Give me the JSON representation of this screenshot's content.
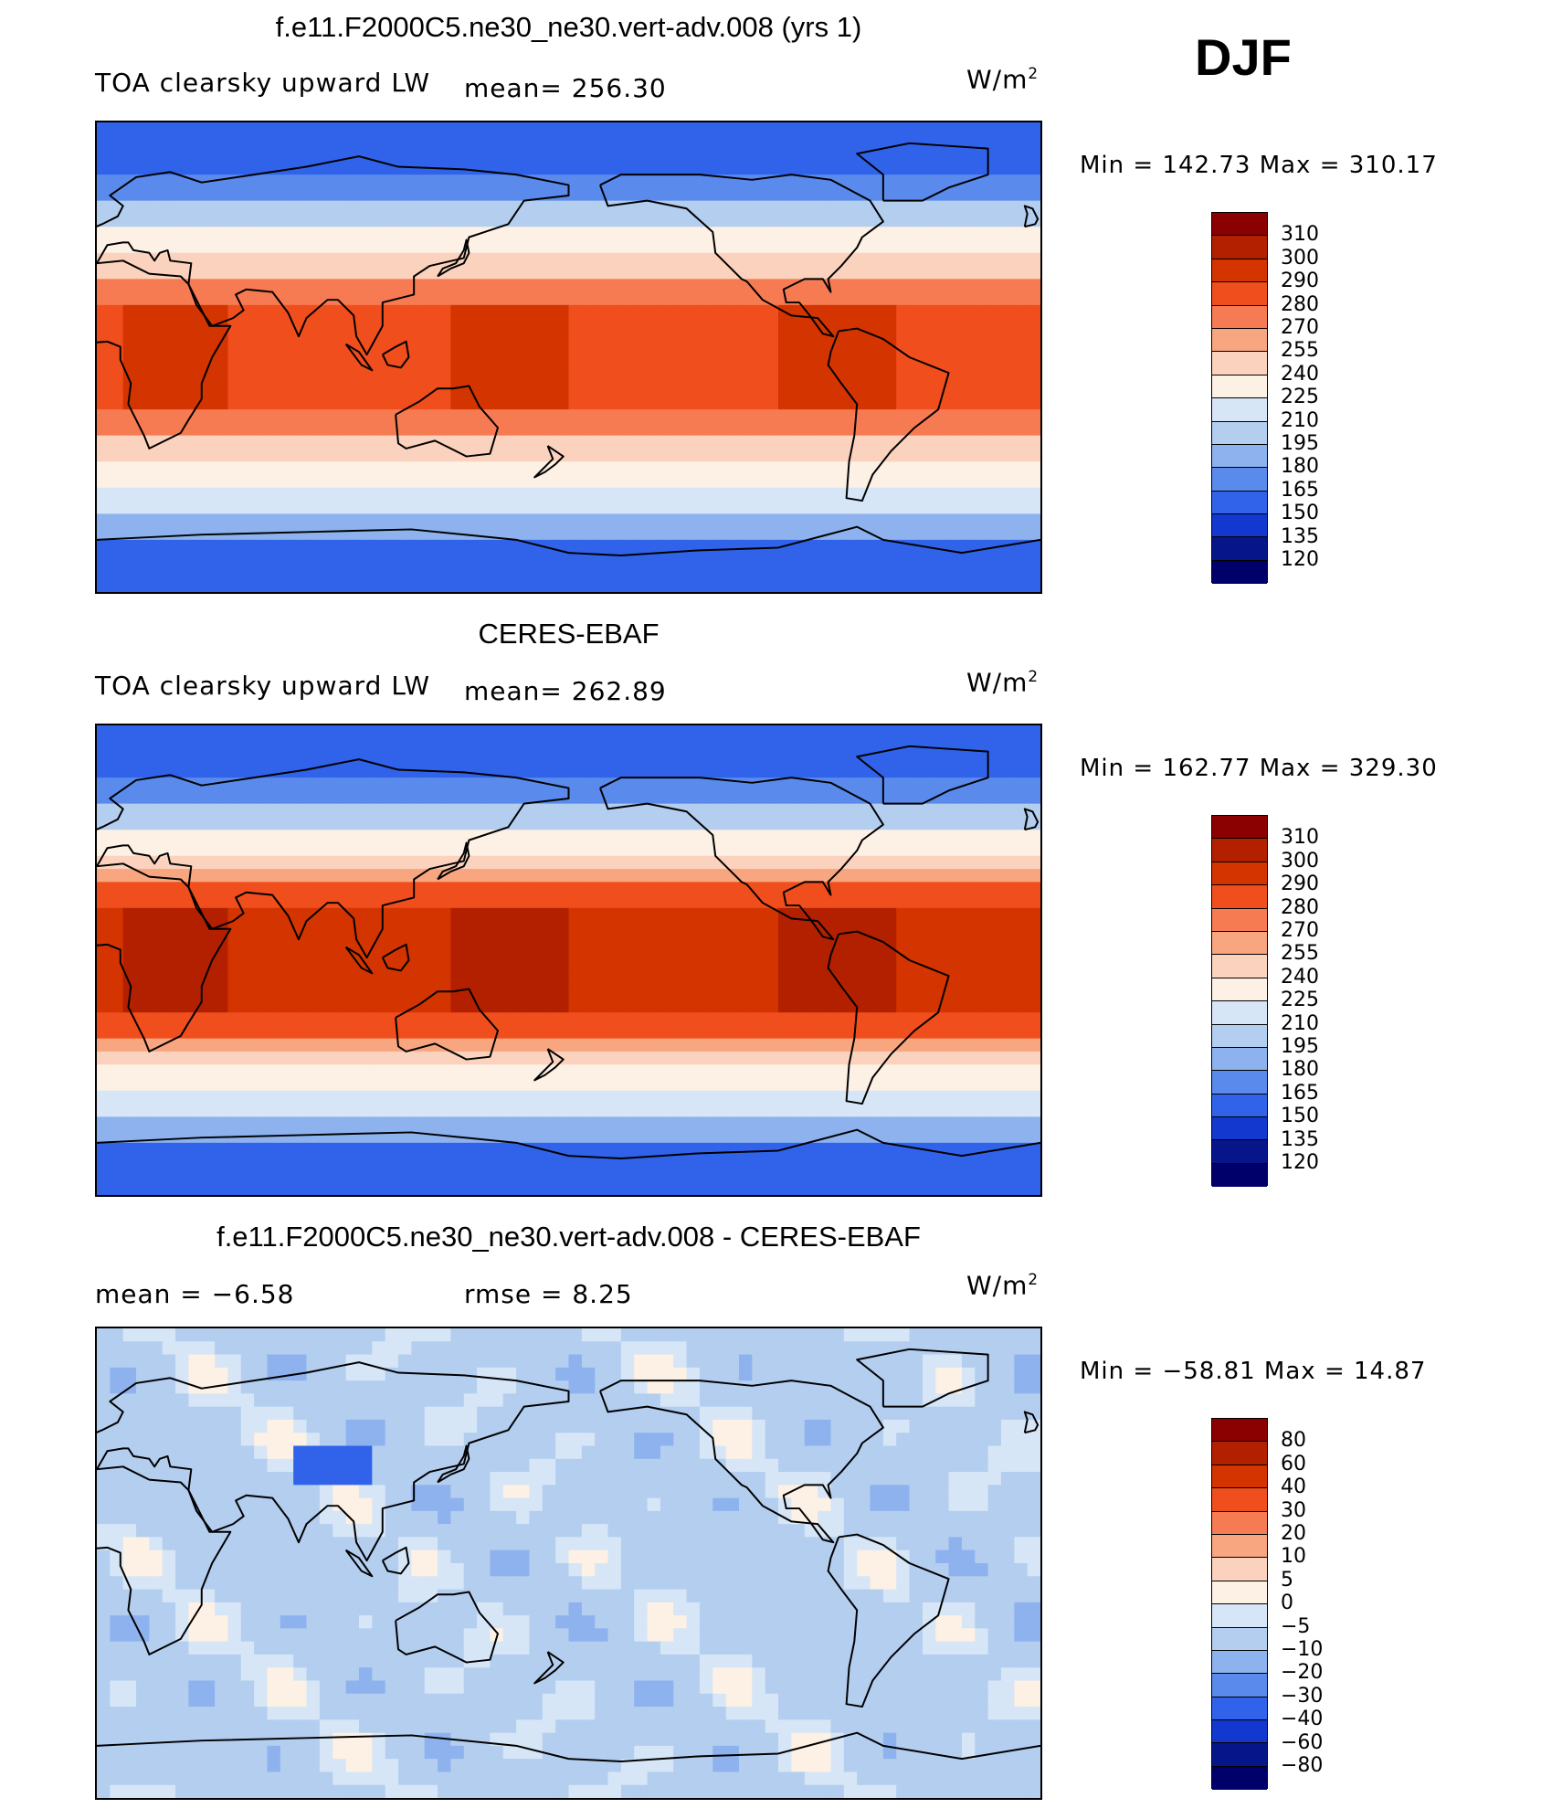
{
  "season": "DJF",
  "panels": [
    {
      "title": "f.e11.F2000C5.ne30_ne30.vert-adv.008 (yrs 1)",
      "left_label": "TOA clearsky upward LW",
      "center_label": "mean=  256.30",
      "units_base": "W/m",
      "units_exp": "2",
      "minmax": "Min  =  142.73  Max  =  310.17",
      "colorbar_labels": [
        "310",
        "300",
        "290",
        "280",
        "270",
        "255",
        "240",
        "225",
        "210",
        "195",
        "180",
        "165",
        "150",
        "135",
        "120"
      ],
      "colorbar_colors": [
        "#8b0000",
        "#b22000",
        "#d33400",
        "#f04e1c",
        "#f67b52",
        "#f8a67f",
        "#fbd2bd",
        "#fdf0e4",
        "#d6e6f6",
        "#b3ceef",
        "#8db2ee",
        "#5a8aeb",
        "#3063ea",
        "#1238cf",
        "#06158a",
        "#00006b"
      ],
      "map_style": "model"
    },
    {
      "title": "CERES-EBAF",
      "left_label": "TOA clearsky upward LW",
      "center_label": "mean=  262.89",
      "units_base": "W/m",
      "units_exp": "2",
      "minmax": "Min  =  162.77  Max  =  329.30",
      "colorbar_labels": [
        "310",
        "300",
        "290",
        "280",
        "270",
        "255",
        "240",
        "225",
        "210",
        "195",
        "180",
        "165",
        "150",
        "135",
        "120"
      ],
      "colorbar_colors": [
        "#8b0000",
        "#b22000",
        "#d33400",
        "#f04e1c",
        "#f67b52",
        "#f8a67f",
        "#fbd2bd",
        "#fdf0e4",
        "#d6e6f6",
        "#b3ceef",
        "#8db2ee",
        "#5a8aeb",
        "#3063ea",
        "#1238cf",
        "#06158a",
        "#00006b"
      ],
      "map_style": "obs"
    },
    {
      "title": "f.e11.F2000C5.ne30_ne30.vert-adv.008 - CERES-EBAF",
      "left_label": "mean  =    −6.58",
      "center_label": "rmse  =     8.25",
      "units_base": "W/m",
      "units_exp": "2",
      "minmax": "Min  =  −58.81  Max  =    14.87",
      "colorbar_labels": [
        "80",
        "60",
        "40",
        "30",
        "20",
        "10",
        "5",
        "0",
        "−5",
        "−10",
        "−20",
        "−30",
        "−40",
        "−60",
        "−80"
      ],
      "colorbar_colors": [
        "#8b0000",
        "#b22000",
        "#d33400",
        "#f04e1c",
        "#f67b52",
        "#f8a67f",
        "#fbd2bd",
        "#fdf0e4",
        "#d6e6f6",
        "#b3ceef",
        "#8db2ee",
        "#5a8aeb",
        "#3063ea",
        "#1238cf",
        "#06158a",
        "#00006b"
      ],
      "map_style": "diff"
    }
  ]
}
